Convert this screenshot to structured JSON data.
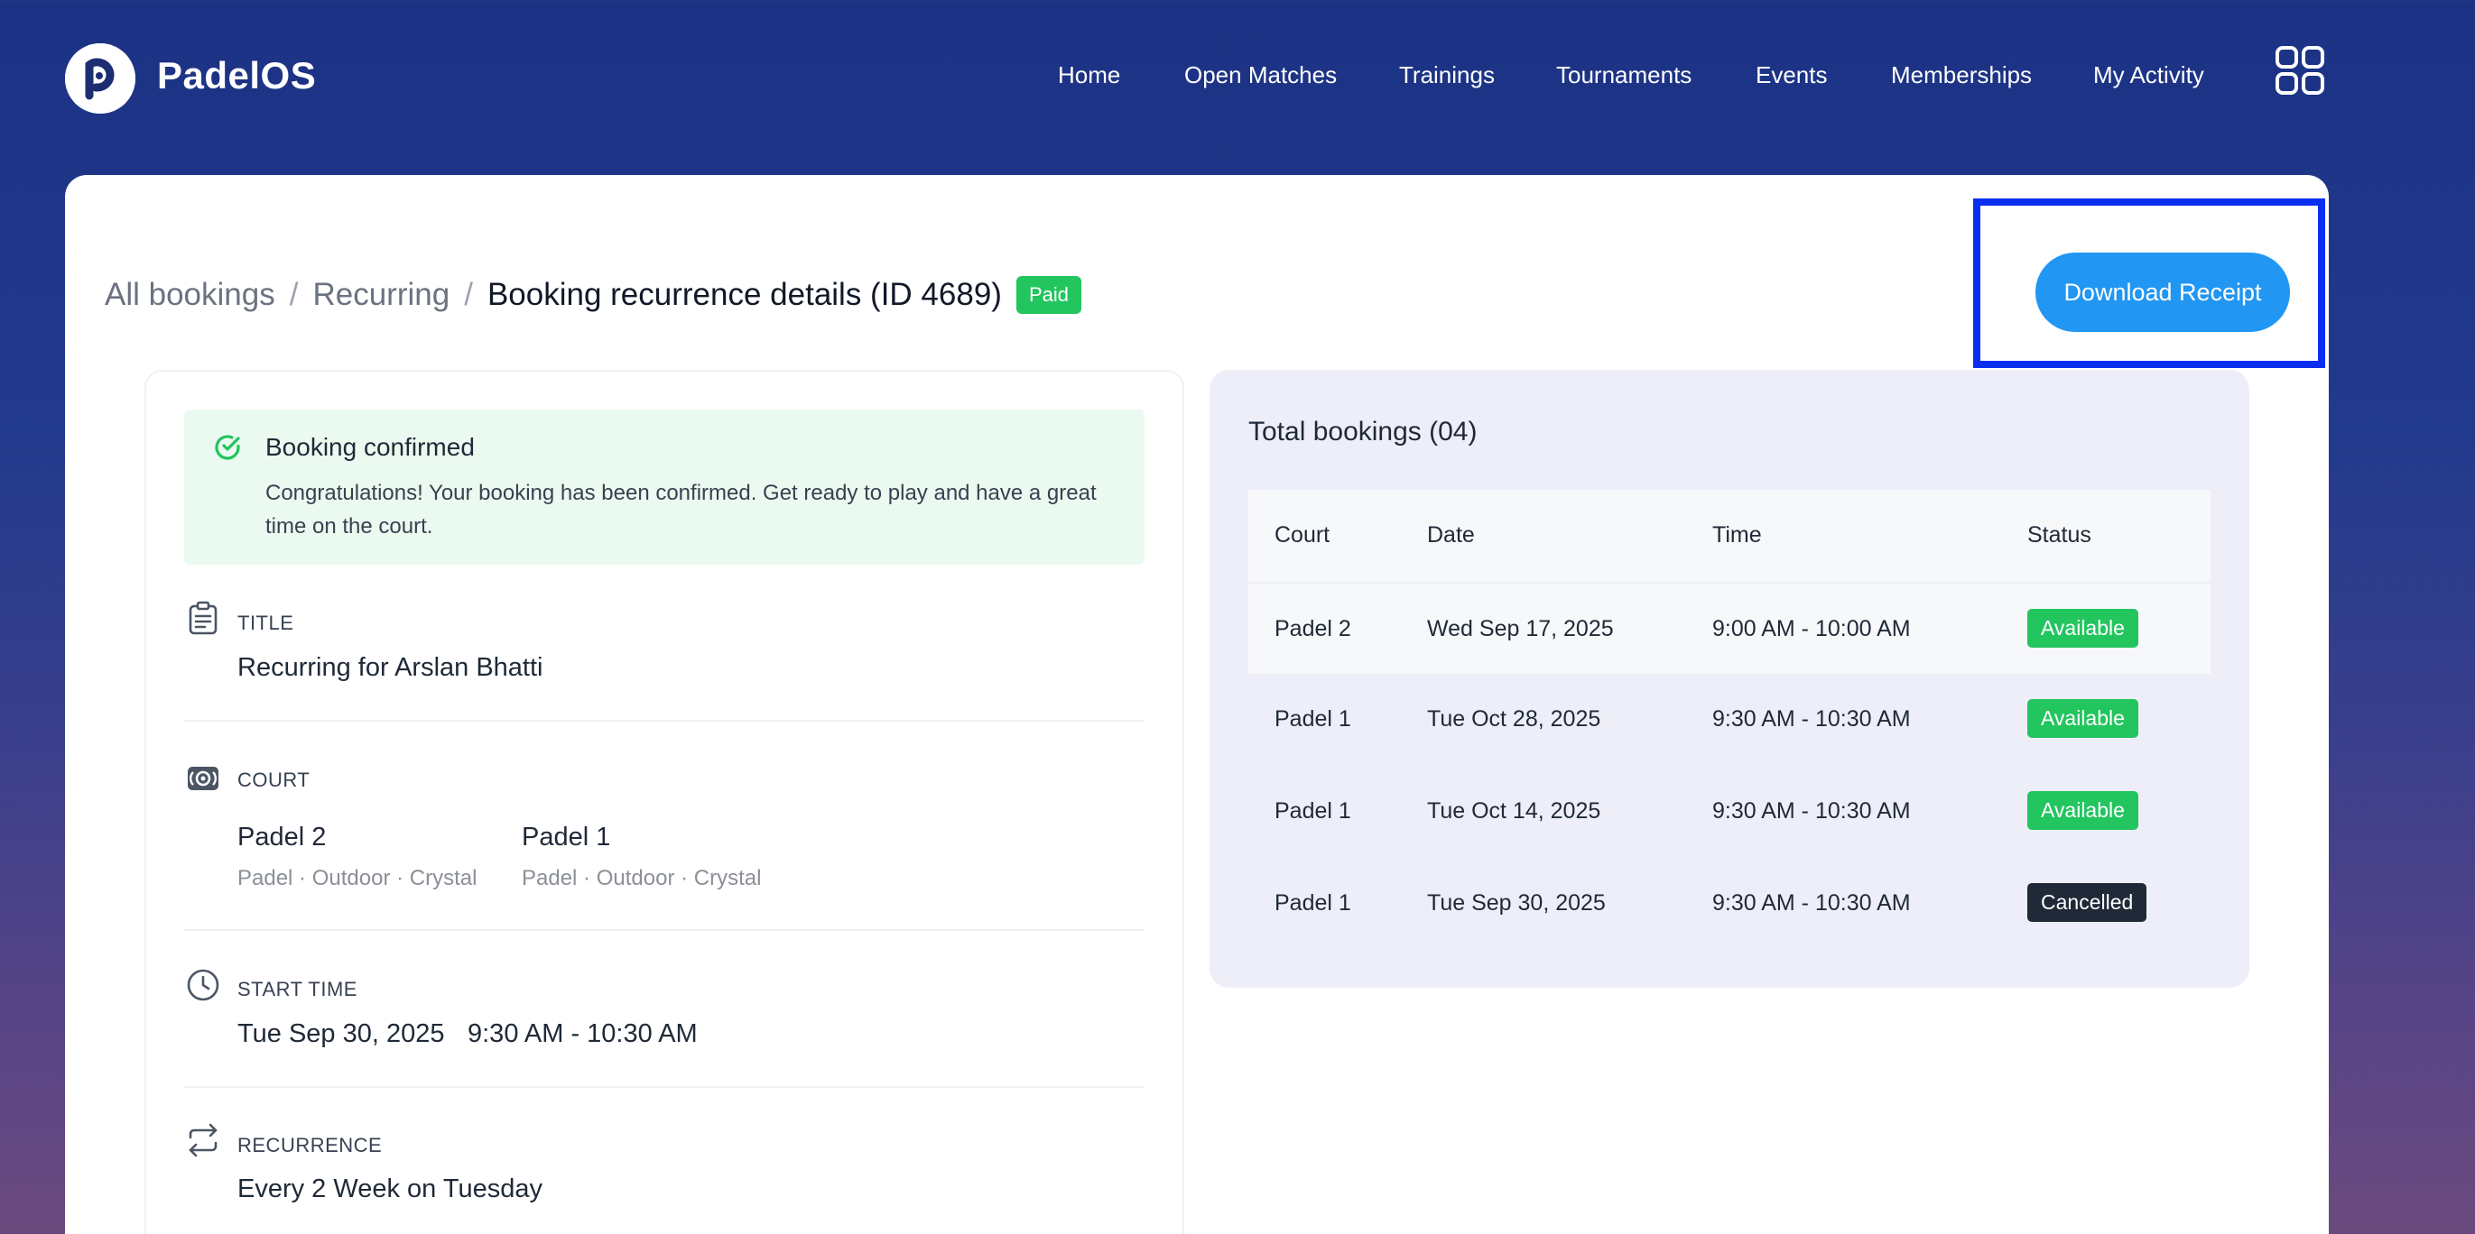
{
  "brand": {
    "name": "PadelOS"
  },
  "nav": {
    "items": [
      "Home",
      "Open Matches",
      "Trainings",
      "Tournaments",
      "Events",
      "Memberships",
      "My Activity"
    ]
  },
  "breadcrumb": {
    "all_bookings": "All bookings",
    "recurring": "Recurring",
    "separator": "/",
    "current": "Booking recurrence details (ID 4689)",
    "badge": "Paid"
  },
  "download_button": {
    "label": "Download Receipt"
  },
  "alert": {
    "title": "Booking confirmed",
    "text": "Congratulations! Your booking has been confirmed. Get ready to play and have a great time on the court."
  },
  "details": {
    "title": {
      "label": "TITLE",
      "value": "Recurring for Arslan Bhatti"
    },
    "court": {
      "label": "COURT",
      "courts": [
        {
          "name": "Padel 2",
          "meta": "Padel · Outdoor · Crystal"
        },
        {
          "name": "Padel 1",
          "meta": "Padel · Outdoor · Crystal"
        }
      ]
    },
    "start_time": {
      "label": "START TIME",
      "date": "Tue Sep 30, 2025",
      "time": "9:30 AM - 10:30 AM"
    },
    "recurrence": {
      "label": "RECURRENCE",
      "value": "Every 2 Week on Tuesday"
    }
  },
  "bookings": {
    "title": "Total bookings (04)",
    "columns": [
      "Court",
      "Date",
      "Time",
      "Status"
    ],
    "rows": [
      {
        "court": "Padel 2",
        "date": "Wed Sep 17, 2025",
        "time": "9:00 AM - 10:00 AM",
        "status": "Available"
      },
      {
        "court": "Padel 1",
        "date": "Tue Oct 28, 2025",
        "time": "9:30 AM - 10:30 AM",
        "status": "Available"
      },
      {
        "court": "Padel 1",
        "date": "Tue Oct 14, 2025",
        "time": "9:30 AM - 10:30 AM",
        "status": "Available"
      },
      {
        "court": "Padel 1",
        "date": "Tue Sep 30, 2025",
        "time": "9:30 AM - 10:30 AM",
        "status": "Cancelled"
      }
    ]
  },
  "colors": {
    "header_bg": "#1c3284",
    "accent_blue": "#2196f3",
    "success_green": "#22c55e",
    "cancelled_dark": "#1f2937",
    "highlight_border": "#0b2ff0"
  }
}
